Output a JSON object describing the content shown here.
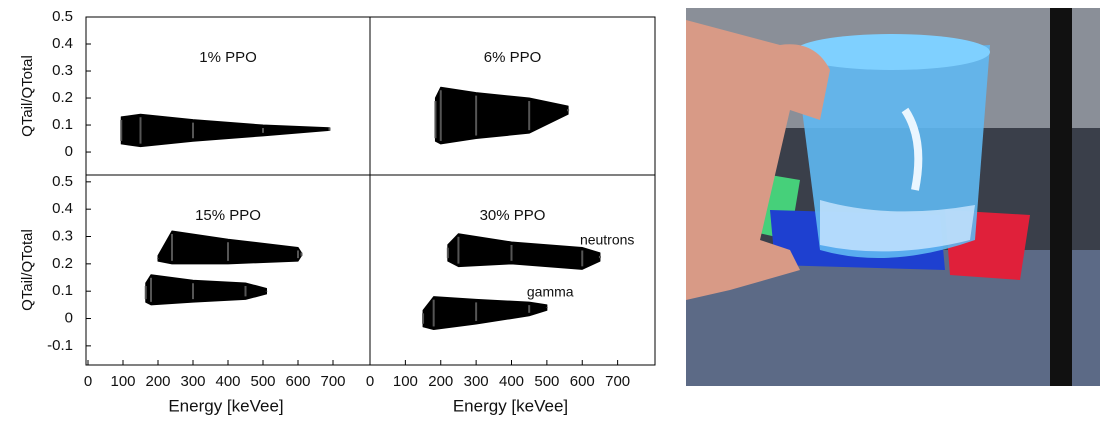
{
  "chart_data": [
    {
      "type": "band",
      "title": "1% PPO",
      "ylabel": "QTail/QTotal",
      "xlim": [
        0,
        800
      ],
      "ylim": [
        -0.085,
        0.5
      ],
      "yticks": [
        0,
        0.1,
        0.2,
        0.3,
        0.4,
        0.5
      ],
      "series": [
        {
          "color": "#000000",
          "x": [
            95,
            150,
            300,
            500,
            690
          ],
          "upper": [
            0.13,
            0.14,
            0.12,
            0.1,
            0.09
          ],
          "lower": [
            0.03,
            0.02,
            0.04,
            0.06,
            0.08
          ]
        }
      ]
    },
    {
      "type": "band",
      "title": "6% PPO",
      "xlim": [
        0,
        800
      ],
      "ylim": [
        -0.085,
        0.5
      ],
      "series": [
        {
          "color": "#000000",
          "x": [
            185,
            200,
            300,
            450,
            560
          ],
          "upper": [
            0.2,
            0.24,
            0.22,
            0.2,
            0.17
          ],
          "lower": [
            0.04,
            0.03,
            0.05,
            0.07,
            0.14
          ]
        }
      ]
    },
    {
      "type": "band",
      "title": "15% PPO",
      "ylabel": "QTail/QTotal",
      "xlabel": "Energy [keVee]",
      "xlim": [
        0,
        800
      ],
      "ylim": [
        -0.17,
        0.525
      ],
      "xticks": [
        0,
        100,
        200,
        300,
        400,
        500,
        600,
        700
      ],
      "yticks": [
        -0.1,
        0,
        0.1,
        0.2,
        0.3,
        0.4,
        0.5
      ],
      "series": [
        {
          "color": "#000000",
          "x": [
            200,
            240,
            400,
            600,
            610
          ],
          "upper": [
            0.23,
            0.32,
            0.29,
            0.26,
            0.24
          ],
          "lower": [
            0.21,
            0.2,
            0.2,
            0.21,
            0.23
          ]
        },
        {
          "color": "#000000",
          "x": [
            165,
            180,
            300,
            450,
            510
          ],
          "upper": [
            0.13,
            0.16,
            0.14,
            0.13,
            0.11
          ],
          "lower": [
            0.06,
            0.05,
            0.06,
            0.07,
            0.09
          ]
        }
      ]
    },
    {
      "type": "band",
      "title": "30% PPO",
      "xlabel": "Energy [keVee]",
      "xlim": [
        0,
        800
      ],
      "ylim": [
        -0.17,
        0.525
      ],
      "xticks": [
        0,
        100,
        200,
        300,
        400,
        500,
        600,
        700
      ],
      "series": [
        {
          "name": "neutrons",
          "color": "#000000",
          "x": [
            220,
            250,
            400,
            600,
            650
          ],
          "upper": [
            0.27,
            0.31,
            0.28,
            0.26,
            0.24
          ],
          "lower": [
            0.21,
            0.19,
            0.2,
            0.18,
            0.21
          ]
        },
        {
          "name": "gamma",
          "color": "#000000",
          "x": [
            150,
            180,
            300,
            450,
            500
          ],
          "upper": [
            0.03,
            0.08,
            0.07,
            0.06,
            0.05
          ],
          "lower": [
            -0.03,
            -0.04,
            -0.02,
            0.01,
            0.03
          ]
        }
      ]
    }
  ]
}
